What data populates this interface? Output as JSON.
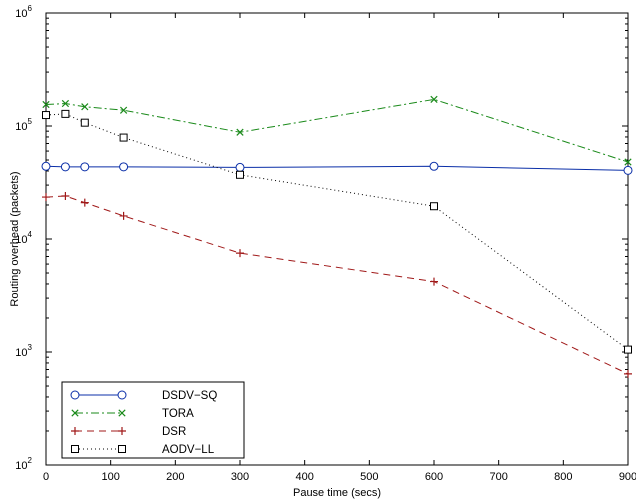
{
  "chart_data": {
    "type": "line",
    "xlabel": "Pause time (secs)",
    "ylabel": "Routing overhead (packets)",
    "xlim": [
      0,
      900
    ],
    "ylim": [
      100,
      1000000
    ],
    "yscale": "log",
    "x_ticks": [
      "0",
      "100",
      "200",
      "300",
      "400",
      "500",
      "600",
      "700",
      "800",
      "900"
    ],
    "y_ticks": [
      {
        "base": "10",
        "exp": "2"
      },
      {
        "base": "10",
        "exp": "3"
      },
      {
        "base": "10",
        "exp": "4"
      },
      {
        "base": "10",
        "exp": "5"
      },
      {
        "base": "10",
        "exp": "6"
      }
    ],
    "grid": false,
    "legend_position": "bottom-left",
    "series": [
      {
        "name": "DSDV−SQ",
        "color": "#0b2fa8",
        "dash": "solid",
        "marker": "circle",
        "x": [
          0,
          30,
          60,
          120,
          300,
          600,
          900
        ],
        "y": [
          44000,
          43500,
          43500,
          43500,
          43000,
          44000,
          40500
        ]
      },
      {
        "name": "TORA",
        "color": "#1a8a1a",
        "dash": "dashdot",
        "marker": "x",
        "x": [
          0,
          30,
          60,
          120,
          300,
          600,
          900
        ],
        "y": [
          155000,
          158000,
          148000,
          138000,
          88000,
          172000,
          48000
        ]
      },
      {
        "name": "DSR",
        "color": "#a01818",
        "dash": "dashed",
        "marker": "plus",
        "x": [
          0,
          30,
          60,
          120,
          300,
          600,
          900
        ],
        "y": [
          23500,
          24000,
          21000,
          16000,
          7500,
          4200,
          640
        ]
      },
      {
        "name": "AODV−LL",
        "color": "#000000",
        "dash": "dotted",
        "marker": "square",
        "x": [
          0,
          30,
          60,
          120,
          300,
          600,
          900
        ],
        "y": [
          125000,
          128000,
          107000,
          79000,
          37000,
          19500,
          1050
        ]
      }
    ]
  }
}
